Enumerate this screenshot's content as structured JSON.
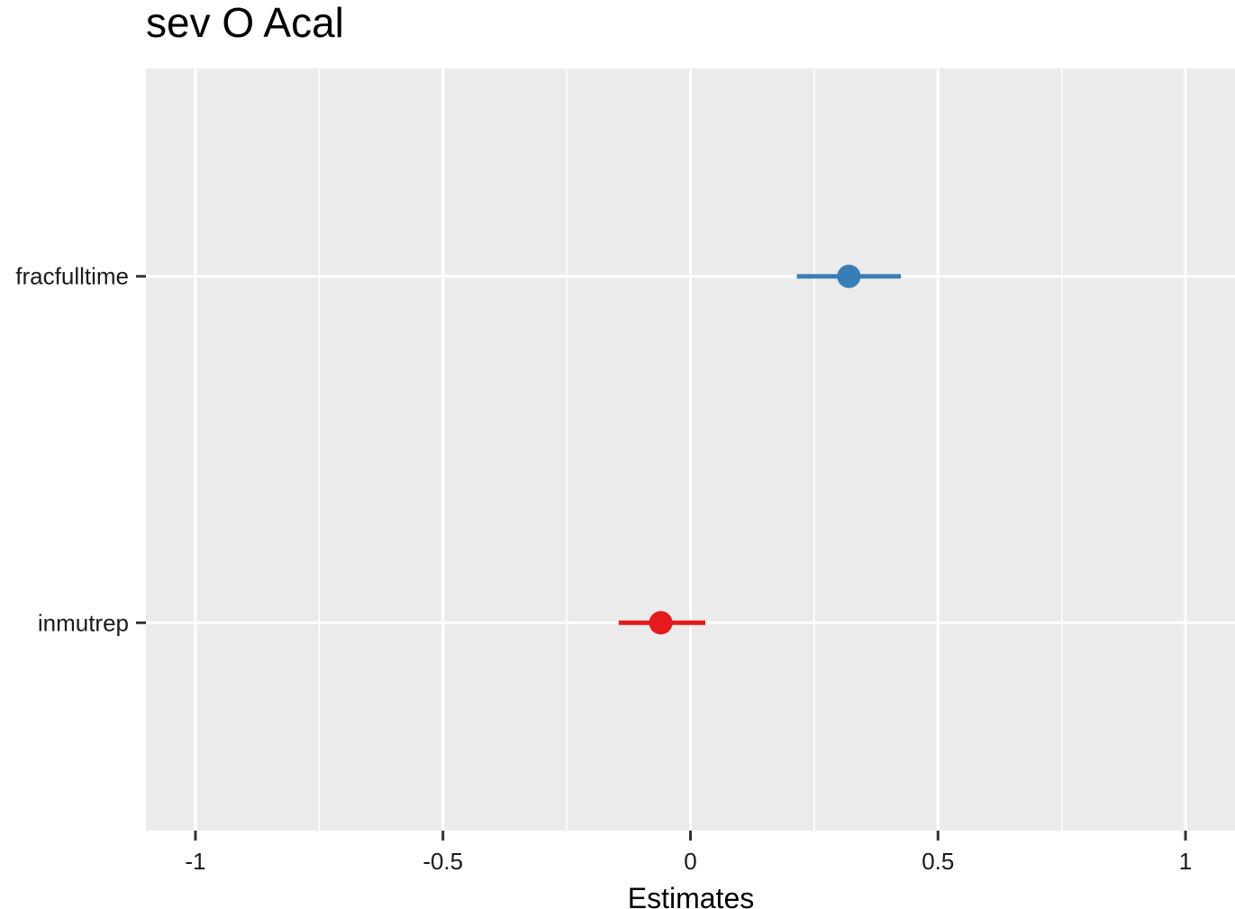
{
  "chart_data": {
    "type": "forest",
    "title": "sev O Acal",
    "xlabel": "Estimates",
    "ylabel": "",
    "xlim": [
      -1.1,
      1.1
    ],
    "x_ticks": [
      -1,
      -0.5,
      0,
      0.5,
      1
    ],
    "x_tick_labels": [
      "-1",
      "-0.5",
      "0",
      "0.5",
      "1"
    ],
    "x_minor_gridlines": [
      -0.75,
      -0.25,
      0.25,
      0.75
    ],
    "grid": true,
    "legend": "none",
    "panel_background": "#ebebeb",
    "gridline_color": "#ffffff",
    "terms": [
      {
        "label": "fracfulltime",
        "estimate": 0.32,
        "conf_low": 0.215,
        "conf_high": 0.425,
        "color": "#377eb8"
      },
      {
        "label": "inmutrep",
        "estimate": -0.06,
        "conf_low": -0.145,
        "conf_high": 0.03,
        "color": "#e41a1c"
      }
    ]
  }
}
